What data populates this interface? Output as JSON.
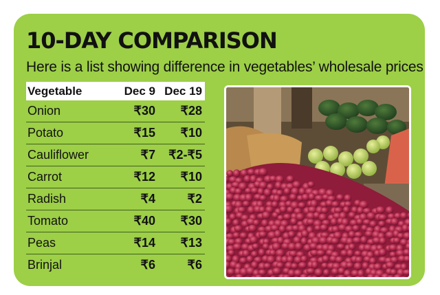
{
  "title": "10-DAY COMPARISON",
  "subtitle": "Here is a list showing difference in vegetables’ wholesale prices",
  "table": {
    "headers": [
      "Vegetable",
      "Dec 9",
      "Dec 19"
    ],
    "rows": [
      {
        "vegetable": "Onion",
        "dec9": "₹30",
        "dec19": "₹28"
      },
      {
        "vegetable": "Potato",
        "dec9": "₹15",
        "dec19": "₹10"
      },
      {
        "vegetable": "Cauliflower",
        "dec9": "₹7",
        "dec19": "₹2-₹5"
      },
      {
        "vegetable": "Carrot",
        "dec9": "₹12",
        "dec19": "₹10"
      },
      {
        "vegetable": "Radish",
        "dec9": "₹4",
        "dec19": "₹2"
      },
      {
        "vegetable": "Tomato",
        "dec9": "₹40",
        "dec19": "₹30"
      },
      {
        "vegetable": "Peas",
        "dec9": "₹14",
        "dec19": "₹13"
      },
      {
        "vegetable": "Brinjal",
        "dec9": "₹6",
        "dec19": "₹6"
      }
    ]
  },
  "colors": {
    "card_background": "#9dcf47",
    "row_divider": "#3f5f1c",
    "onion": "#b0284a"
  },
  "photo_subject": "market-onion-pile-photo"
}
